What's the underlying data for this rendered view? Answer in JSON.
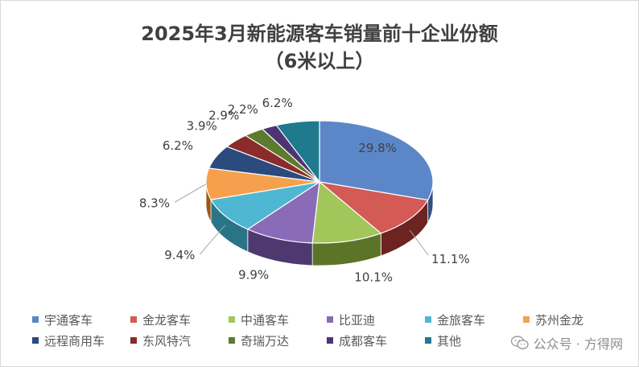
{
  "chart_data": {
    "type": "pie",
    "title": "2025年3月新能源客车销量前十企业份额",
    "subtitle": "（6米以上）",
    "legend_placement": "bottom",
    "slices": [
      {
        "name": "宇通客车",
        "value": 29.8,
        "label": "29.8%",
        "color": "#5b87c9",
        "side": "#2f4f7f"
      },
      {
        "name": "金龙客车",
        "value": 11.1,
        "label": "11.1%",
        "color": "#d35a55",
        "side": "#6d2320"
      },
      {
        "name": "中通客车",
        "value": 10.1,
        "label": "10.1%",
        "color": "#a3c65b",
        "side": "#5c7428"
      },
      {
        "name": "比亚迪",
        "value": 9.9,
        "label": "9.9%",
        "color": "#8a6bb8",
        "side": "#4d3870"
      },
      {
        "name": "金旅客车",
        "value": 9.4,
        "label": "9.4%",
        "color": "#4fb7d1",
        "side": "#2a7487"
      },
      {
        "name": "苏州金龙",
        "value": 8.3,
        "label": "8.3%",
        "color": "#f6a04d",
        "side": "#9a5818"
      },
      {
        "name": "远程商用车",
        "value": 6.2,
        "label": "6.2%",
        "color": "#2b4a7d",
        "side": "#15264a"
      },
      {
        "name": "东风特汽",
        "value": 3.9,
        "label": "3.9%",
        "color": "#8b2b2b",
        "side": "#4a1212"
      },
      {
        "name": "奇瑞万达",
        "value": 2.9,
        "label": "2.9%",
        "color": "#5d7b2c",
        "side": "#2f4113"
      },
      {
        "name": "成都客车",
        "value": 2.2,
        "label": "2.2%",
        "color": "#4d3472",
        "side": "#26183d"
      },
      {
        "name": "其他",
        "value": 6.2,
        "label": "6.2%",
        "color": "#1e7a8c",
        "side": "#0d3f4a"
      }
    ]
  },
  "watermark": {
    "text": "公众号 · 方得网"
  }
}
